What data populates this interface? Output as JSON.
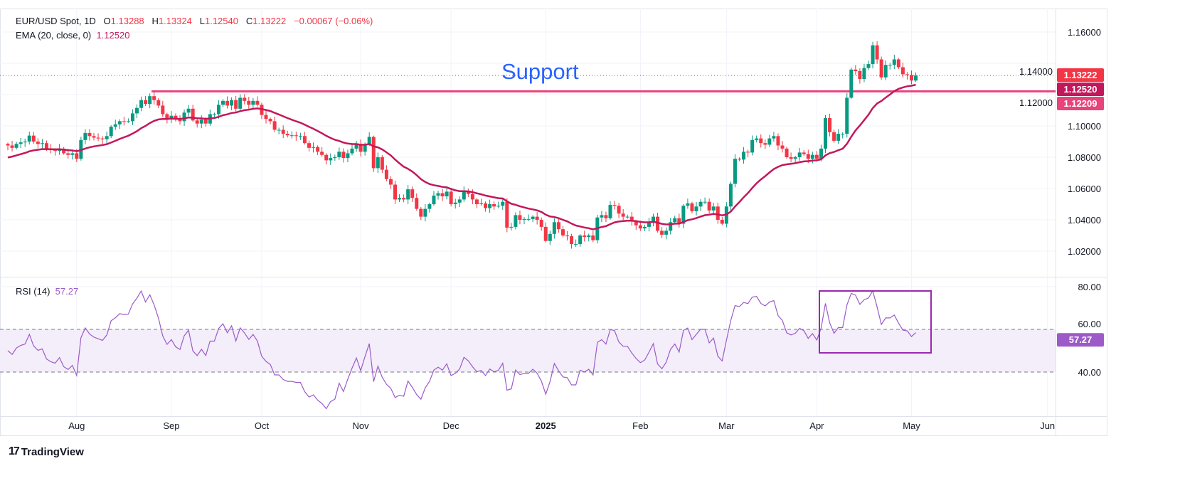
{
  "header": {
    "symbol": "EUR/USD Spot, 1D",
    "open_label": "O",
    "open": "1.13288",
    "high_label": "H",
    "high": "1.13324",
    "low_label": "L",
    "low": "1.12540",
    "close_label": "C",
    "close": "1.13222",
    "change": "−0.00067 (−0.06%)",
    "ema_label": "EMA (20, close, 0)",
    "ema_value": "1.12520",
    "rsi_label": "RSI (14)",
    "rsi_value": "57.27"
  },
  "price_labels": {
    "last": "1.13222",
    "ema": "1.12520",
    "support": "1.12209"
  },
  "annotation": {
    "text": "Support"
  },
  "footer": {
    "brand": "TradingView"
  },
  "colors": {
    "up": "#089981",
    "down": "#f23645",
    "ema": "#c2185b",
    "support": "#e8437a",
    "annotation": "#2962ff",
    "rsi": "#9c5bc8",
    "box": "#9c27b0"
  },
  "chart_data": [
    {
      "type": "candlestick",
      "ylim": [
        1.01,
        1.17
      ],
      "y_ticks": [
        "1.16000",
        "1.14000",
        "1.12000",
        "1.10000",
        "1.08000",
        "1.06000",
        "1.04000",
        "1.02000"
      ],
      "x_ticks": [
        "Aug",
        "Sep",
        "Oct",
        "Nov",
        "Dec",
        "2025",
        "Feb",
        "Mar",
        "Apr",
        "May",
        "Jun"
      ],
      "close": [
        1.0875,
        1.086,
        1.0885,
        1.0895,
        1.09,
        1.0938,
        1.09,
        1.0885,
        1.089,
        1.0855,
        1.0845,
        1.084,
        1.0855,
        1.0825,
        1.0815,
        1.0825,
        1.079,
        1.091,
        1.0955,
        1.0935,
        1.0925,
        1.092,
        1.0915,
        1.0935,
        1.0995,
        1.101,
        1.103,
        1.1028,
        1.103,
        1.108,
        1.1115,
        1.1165,
        1.114,
        1.119,
        1.1165,
        1.113,
        1.1075,
        1.1045,
        1.1065,
        1.104,
        1.103,
        1.1085,
        1.111,
        1.1035,
        1.1015,
        1.104,
        1.1015,
        1.1075,
        1.1075,
        1.1135,
        1.116,
        1.113,
        1.1165,
        1.111,
        1.118,
        1.116,
        1.1135,
        1.116,
        1.1135,
        1.107,
        1.1045,
        1.103,
        1.0975,
        1.0975,
        1.095,
        1.094,
        1.094,
        1.0935,
        1.0935,
        1.089,
        1.086,
        1.0865,
        1.0835,
        1.0815,
        1.078,
        1.0795,
        1.08,
        1.0835,
        1.0795,
        1.0825,
        1.0855,
        1.0885,
        1.0835,
        1.088,
        1.093,
        1.073,
        1.08,
        1.072,
        1.066,
        1.0625,
        1.053,
        1.054,
        1.053,
        1.0595,
        1.054,
        1.047,
        1.042,
        1.047,
        1.05,
        1.0555,
        1.057,
        1.055,
        1.058,
        1.05,
        1.051,
        1.053,
        1.0585,
        1.0565,
        1.053,
        1.05,
        1.0505,
        1.0475,
        1.05,
        1.0485,
        1.049,
        1.0515,
        1.035,
        1.0355,
        1.043,
        1.04,
        1.0405,
        1.0405,
        1.042,
        1.04,
        1.0355,
        1.0265,
        1.031,
        1.0385,
        1.034,
        1.03,
        1.0295,
        1.0245,
        1.0245,
        1.03,
        1.029,
        1.03,
        1.027,
        1.0415,
        1.043,
        1.041,
        1.0495,
        1.049,
        1.044,
        1.042,
        1.042,
        1.039,
        1.0365,
        1.0345,
        1.0355,
        1.0385,
        1.042,
        1.033,
        1.0305,
        1.033,
        1.0385,
        1.041,
        1.0375,
        1.049,
        1.0505,
        1.0455,
        1.0485,
        1.0515,
        1.0515,
        1.046,
        1.0485,
        1.04,
        1.0375,
        1.0485,
        1.063,
        1.079,
        1.0785,
        1.0835,
        1.083,
        1.091,
        1.092,
        1.089,
        1.088,
        1.092,
        1.0935,
        1.0875,
        1.0855,
        1.08,
        1.079,
        1.08,
        1.083,
        1.082,
        1.079,
        1.0815,
        1.079,
        1.0855,
        1.105,
        1.096,
        1.0905,
        1.095,
        1.095,
        1.118,
        1.136,
        1.135,
        1.13,
        1.137,
        1.1395,
        1.1515,
        1.1425,
        1.131,
        1.139,
        1.139,
        1.1425,
        1.1375,
        1.133,
        1.1326,
        1.129,
        1.13222
      ],
      "ema_period": 20,
      "support_level": 1.12209,
      "last_price": 1.13222
    },
    {
      "type": "line",
      "ylim": [
        20,
        85
      ],
      "y_ticks": [
        "80.00",
        "60.00",
        "40.00"
      ],
      "bands": [
        40,
        60
      ],
      "last_value": 57.27,
      "highlight_box": {
        "rsi_low": 49,
        "rsi_high": 78
      }
    }
  ]
}
